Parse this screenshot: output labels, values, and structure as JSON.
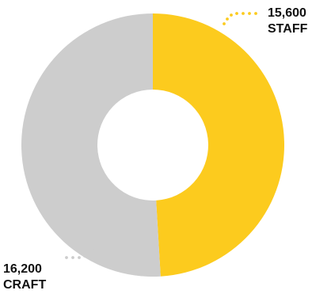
{
  "chart_data": {
    "type": "pie",
    "style": "donut",
    "slices": [
      {
        "value": 15600,
        "value_label": "15,600",
        "category": "STAFF",
        "color": "#FCCB1E"
      },
      {
        "value": 16200,
        "value_label": "16,200",
        "category": "CRAFT",
        "color": "#CDCDCD"
      }
    ],
    "leader_dot_color": "#FCCB1E",
    "leader_dot_color_alt": "#CDCDCD"
  }
}
